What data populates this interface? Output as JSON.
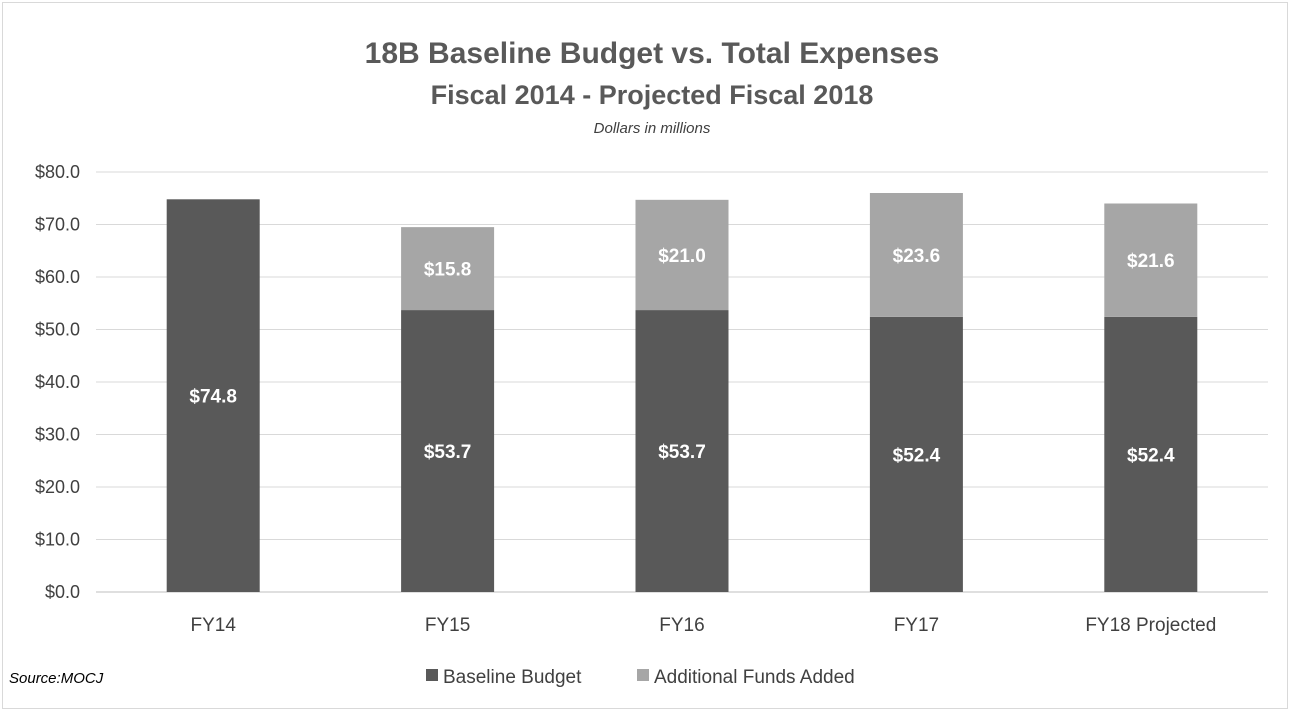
{
  "chart_data": {
    "type": "bar",
    "stacked": true,
    "title": "18B Baseline Budget vs. Total Expenses",
    "subtitle": "Fiscal 2014 - Projected Fiscal 2018",
    "units_note": "Dollars in millions",
    "source": "Source:MOCJ",
    "categories": [
      "FY14",
      "FY15",
      "FY16",
      "FY17",
      "FY18 Projected"
    ],
    "series": [
      {
        "name": "Baseline Budget",
        "color": "#595959",
        "values": [
          74.8,
          53.7,
          53.7,
          52.4,
          52.4
        ],
        "labels": [
          "$74.8",
          "$53.7",
          "$53.7",
          "$52.4",
          "$52.4"
        ]
      },
      {
        "name": "Additional Funds Added",
        "color": "#a6a6a6",
        "values": [
          0,
          15.8,
          21.0,
          23.6,
          21.6
        ],
        "labels": [
          "",
          "$15.8",
          "$21.0",
          "$23.6",
          "$21.6"
        ]
      }
    ],
    "ylim": [
      0,
      80
    ],
    "ytick_values": [
      0,
      10,
      20,
      30,
      40,
      50,
      60,
      70,
      80
    ],
    "ytick_labels": [
      "$0.0",
      "$10.0",
      "$20.0",
      "$30.0",
      "$40.0",
      "$50.0",
      "$60.0",
      "$70.0",
      "$80.0"
    ],
    "grid": true,
    "legend_position": "bottom"
  }
}
